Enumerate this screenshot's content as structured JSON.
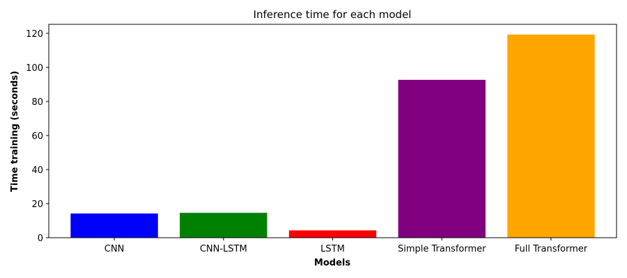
{
  "chart_data": {
    "type": "bar",
    "title": "Inference time for each model",
    "xlabel": "Models",
    "ylabel": "Time training (seconds)",
    "categories": [
      "CNN",
      "CNN-LSTM",
      "LSTM",
      "Simple Transformer",
      "Full Transformer"
    ],
    "values": [
      14.2,
      14.6,
      4.3,
      92.7,
      119.3
    ],
    "colors": [
      "#0000ff",
      "#008000",
      "#ff0000",
      "#800080",
      "#ffa500"
    ],
    "ylim": [
      0,
      125.3
    ],
    "yticks": [
      0,
      20,
      40,
      60,
      80,
      100,
      120
    ],
    "grid": false,
    "legend": "none"
  }
}
